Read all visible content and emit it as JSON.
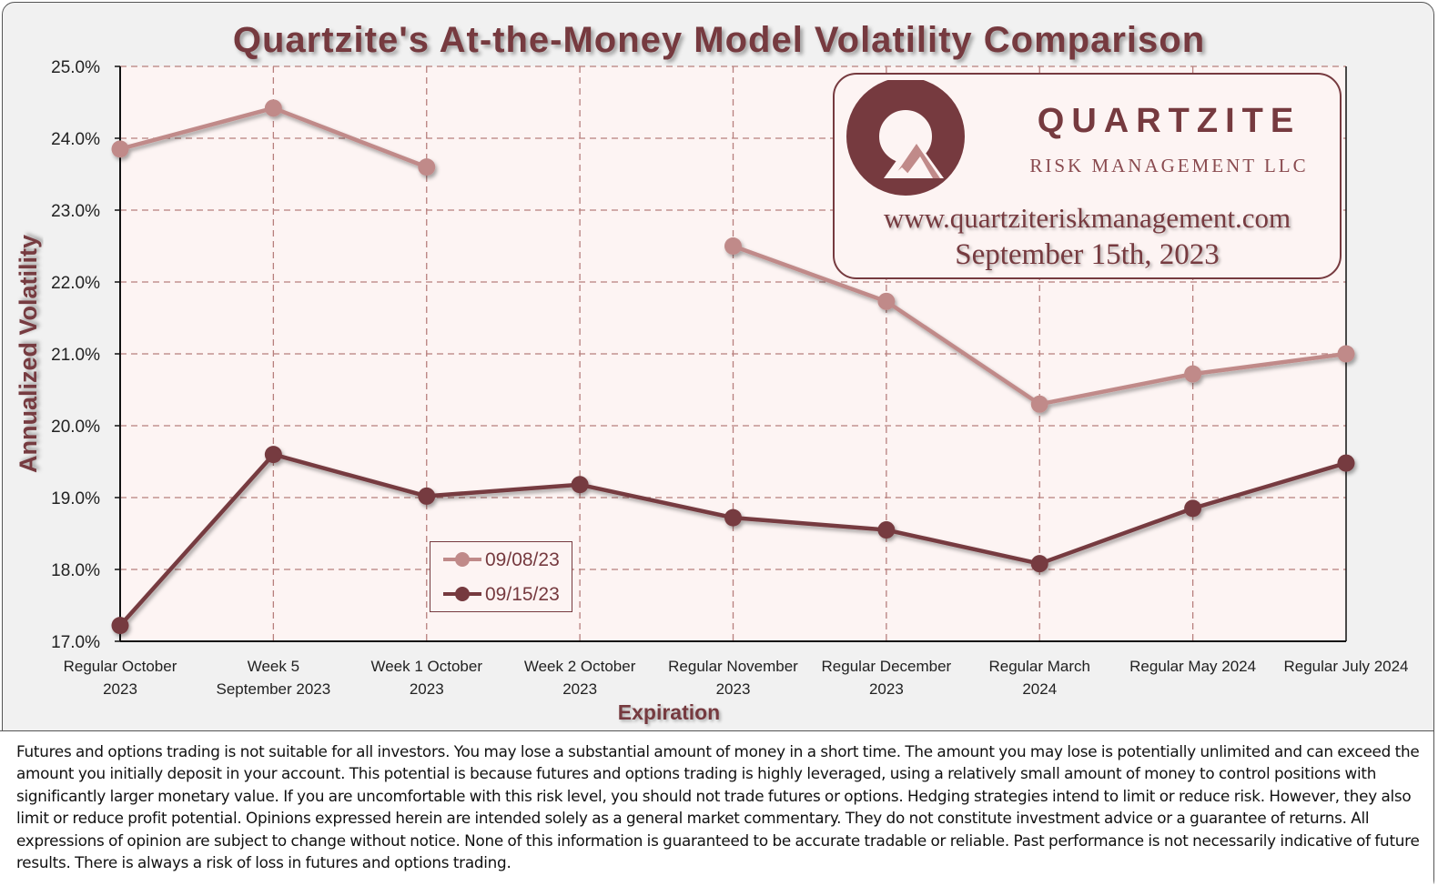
{
  "chart_data": {
    "type": "line",
    "title": "Quartzite's At-the-Money Model Volatility Comparison",
    "xlabel": "Expiration",
    "ylabel": "Annualized Volatility",
    "ylim": [
      17.0,
      25.0
    ],
    "ytick_step": 1.0,
    "yticks": [
      "25.0%",
      "24.0%",
      "23.0%",
      "22.0%",
      "21.0%",
      "20.0%",
      "19.0%",
      "18.0%",
      "17.0%"
    ],
    "categories": [
      [
        "Regular October",
        "2023"
      ],
      [
        "Week 5",
        "September 2023"
      ],
      [
        "Week 1 October",
        "2023"
      ],
      [
        "Week 2 October",
        "2023"
      ],
      [
        "Regular November",
        "2023"
      ],
      [
        "Regular December",
        "2023"
      ],
      [
        "Regular March",
        "2024"
      ],
      [
        "Regular May 2024"
      ],
      [
        "Regular July 2024"
      ]
    ],
    "grid": true,
    "legend_position": "lower-center",
    "series": [
      {
        "name": "09/08/23",
        "color": "#c08a89",
        "values": [
          23.85,
          24.42,
          23.6,
          null,
          22.5,
          21.73,
          20.3,
          20.72,
          21.0
        ]
      },
      {
        "name": "09/15/23",
        "color": "#763a3f",
        "values": [
          17.22,
          19.6,
          19.02,
          19.18,
          18.72,
          18.55,
          18.08,
          18.85,
          19.48
        ]
      }
    ]
  },
  "logo": {
    "name": "QUARTZITE",
    "subtitle": "RISK MANAGEMENT LLC",
    "url": "www.quartziteriskmanagement.com",
    "date": "September 15th, 2023"
  },
  "disclaimer": "Futures and options trading is not suitable for all investors. You may lose a substantial amount of money in a short time. The amount you may lose is potentially unlimited and can exceed the amount you initially deposit in your account. This potential is because futures and options trading is highly leveraged, using a relatively small amount of money to control positions with significantly larger monetary value. If you are uncomfortable with this risk level, you should not trade futures or options. Hedging strategies intend to limit or reduce risk. However, they also limit or reduce profit potential. Opinions expressed herein are intended solely as a general market commentary. They do not constitute investment advice or a guarantee of returns. All expressions of opinion are subject to change without notice. None of this information is guaranteed to be accurate tradable or reliable. Past performance is not necessarily indicative of future results. There is always a risk of loss in futures and options trading."
}
